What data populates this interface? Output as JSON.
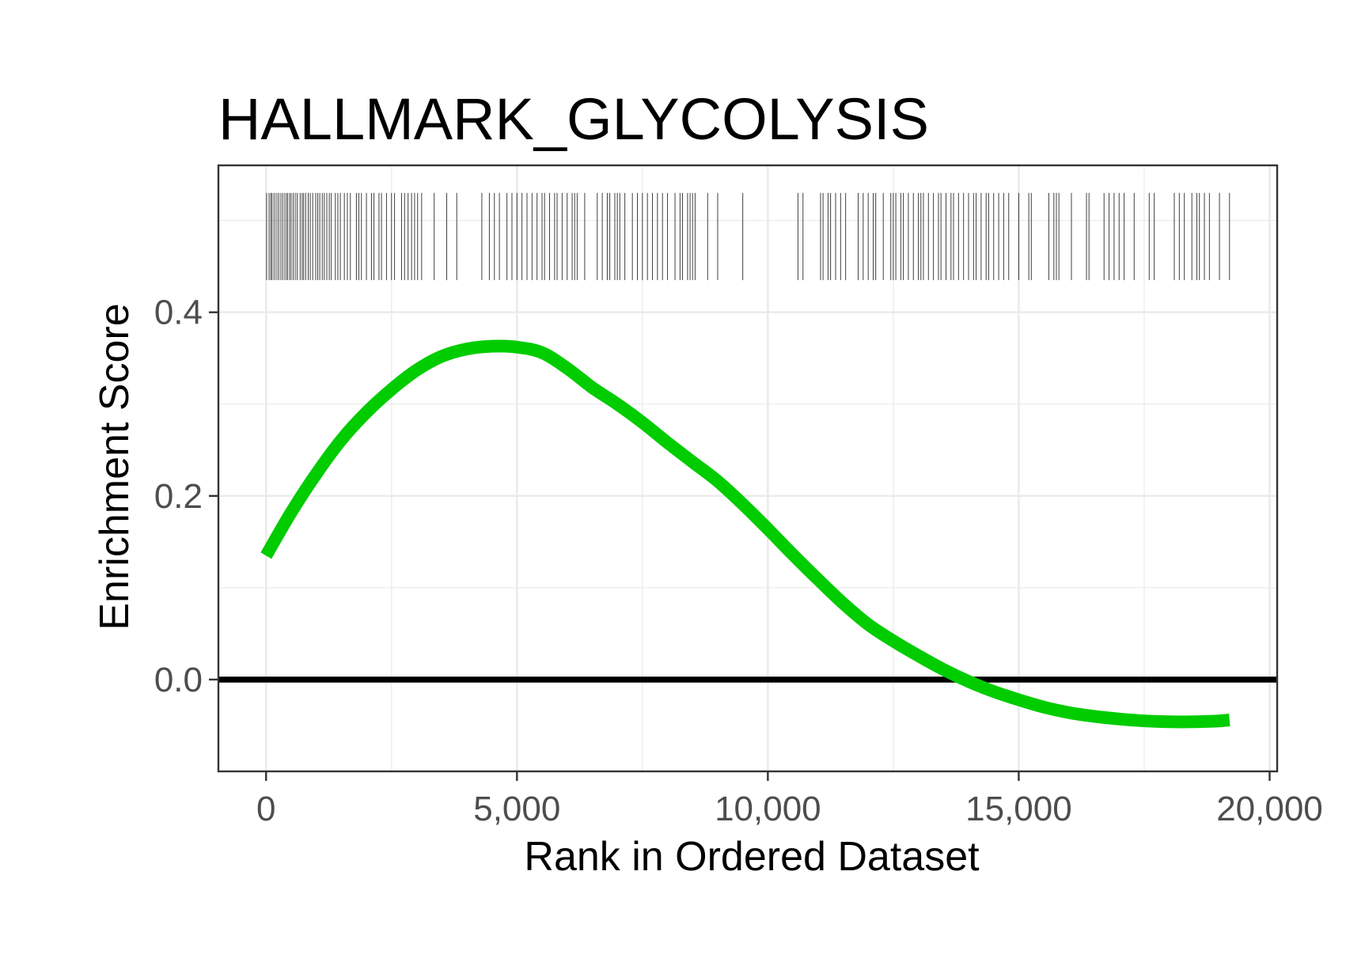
{
  "chart_data": {
    "type": "line",
    "title": "HALLMARK_GLYCOLYSIS",
    "xlabel": "Rank in Ordered Dataset",
    "ylabel": "Enrichment Score",
    "xlim": [
      -950,
      20150
    ],
    "ylim": [
      -0.1,
      0.56
    ],
    "x_ticks": [
      0,
      5000,
      10000,
      15000,
      20000
    ],
    "x_tick_labels": [
      "0",
      "5,000",
      "10,000",
      "15,000",
      "20,000"
    ],
    "y_ticks": [
      0.0,
      0.2,
      0.4
    ],
    "y_tick_labels": [
      "0.0",
      "0.2",
      "0.4"
    ],
    "grid": true,
    "zero_line": 0,
    "colors": {
      "curve": "#00cc00",
      "zero_line": "#000000",
      "rug": "#000000"
    },
    "series": [
      {
        "x": [
          0,
          500,
          1000,
          1500,
          2000,
          2500,
          3000,
          3500,
          4000,
          4500,
          5000,
          5500,
          6000,
          6500,
          7000,
          7500,
          8000,
          8500,
          9000,
          9500,
          10000,
          10500,
          11000,
          11500,
          12000,
          12500,
          13000,
          13500,
          14000,
          14500,
          15000,
          15500,
          16000,
          16500,
          17000,
          17500,
          18000,
          18500,
          19000,
          19200
        ],
        "y": [
          0.135,
          0.182,
          0.224,
          0.261,
          0.291,
          0.316,
          0.337,
          0.352,
          0.36,
          0.363,
          0.362,
          0.356,
          0.339,
          0.318,
          0.3,
          0.28,
          0.258,
          0.237,
          0.216,
          0.191,
          0.164,
          0.136,
          0.109,
          0.083,
          0.06,
          0.042,
          0.026,
          0.011,
          -0.002,
          -0.013,
          -0.022,
          -0.03,
          -0.036,
          -0.04,
          -0.043,
          -0.045,
          -0.046,
          -0.046,
          -0.045,
          -0.044
        ]
      }
    ],
    "rug_y_range": [
      0.435,
      0.53
    ],
    "rug_positions": [
      10,
      60,
      95,
      120,
      160,
      200,
      240,
      280,
      320,
      360,
      400,
      430,
      470,
      500,
      540,
      580,
      620,
      680,
      720,
      750,
      790,
      840,
      880,
      930,
      990,
      1030,
      1070,
      1120,
      1160,
      1210,
      1260,
      1300,
      1380,
      1430,
      1480,
      1560,
      1620,
      1680,
      1800,
      1850,
      1900,
      2000,
      2100,
      2150,
      2250,
      2300,
      2400,
      2500,
      2560,
      2700,
      2760,
      2830,
      2900,
      2960,
      3020,
      3100,
      3350,
      3600,
      3800,
      4300,
      4450,
      4550,
      4650,
      4800,
      4900,
      5000,
      5100,
      5200,
      5300,
      5400,
      5500,
      5550,
      5650,
      5750,
      5800,
      5900,
      6000,
      6100,
      6150,
      6200,
      6350,
      6600,
      6700,
      6800,
      6850,
      6950,
      7000,
      7050,
      7150,
      7300,
      7400,
      7500,
      7600,
      7700,
      7800,
      7900,
      8000,
      8150,
      8250,
      8300,
      8400,
      8450,
      8500,
      8550,
      8800,
      9000,
      9500,
      10600,
      10700,
      11050,
      11100,
      11200,
      11250,
      11350,
      11450,
      11550,
      11800,
      11900,
      12000,
      12100,
      12150,
      12300,
      12450,
      12500,
      12550,
      12650,
      12700,
      12800,
      12900,
      13000,
      13050,
      13100,
      13200,
      13300,
      13400,
      13450,
      13550,
      13650,
      13700,
      13800,
      13900,
      14000,
      14100,
      14150,
      14250,
      14350,
      14400,
      14500,
      14600,
      14700,
      14800,
      15000,
      15200,
      15250,
      15600,
      15700,
      15750,
      15800,
      16050,
      16350,
      16400,
      16700,
      16800,
      16900,
      17000,
      17100,
      17300,
      17600,
      17700,
      18100,
      18200,
      18300,
      18450,
      18550,
      18600,
      18700,
      18800,
      19000,
      19200
    ]
  }
}
